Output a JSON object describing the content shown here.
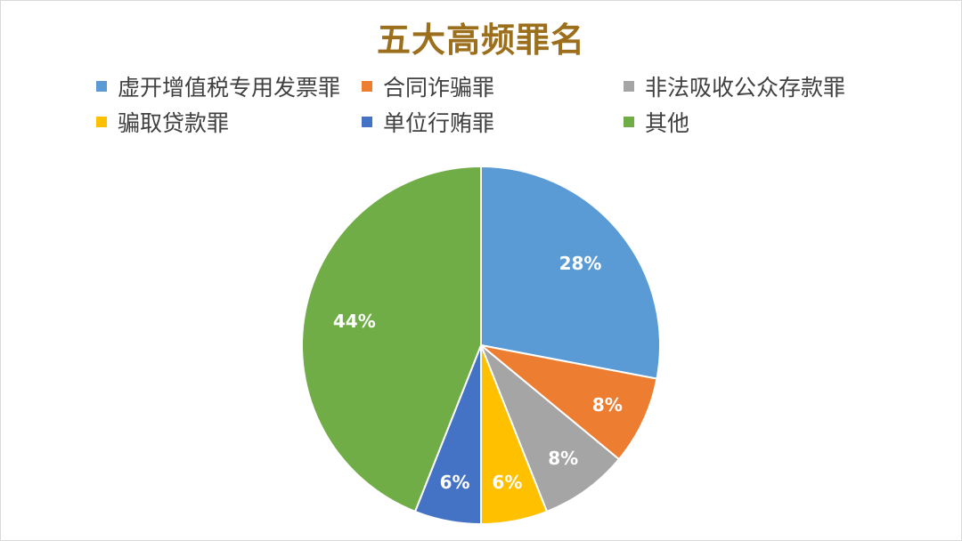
{
  "chart_data": {
    "type": "pie",
    "title": "五大高频罪名",
    "legend_position": "top",
    "categories": [
      "虚开增值税专用发票罪",
      "合同诈骗罪",
      "非法吸收公众存款罪",
      "骗取贷款罪",
      "单位行贿罪",
      "其他"
    ],
    "values": [
      28,
      8,
      8,
      6,
      6,
      44
    ],
    "data_labels": [
      "28%",
      "8%",
      "8%",
      "6%",
      "6%",
      "44%"
    ],
    "colors": [
      "#5b9bd5",
      "#ed7d31",
      "#a5a5a5",
      "#ffc000",
      "#4472c4",
      "#70ad47"
    ]
  }
}
